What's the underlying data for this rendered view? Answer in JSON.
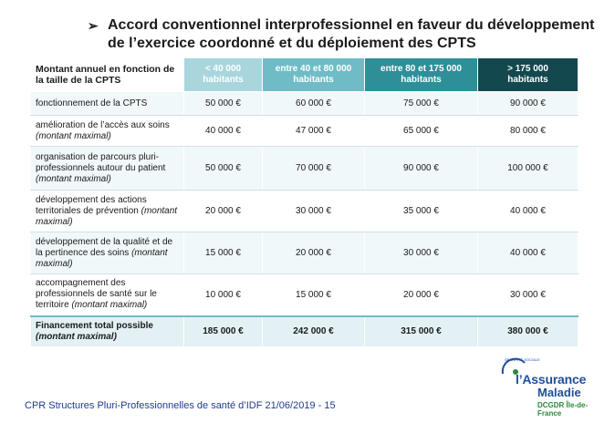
{
  "slide": {
    "title_bullet": "➢",
    "title": "Accord conventionnel interprofessionnel en faveur du développement de l’exercice coordonné et du déploiement des CPTS"
  },
  "table": {
    "corner_header": "Montant annuel en fonction de la taille de la CPTS",
    "columns": [
      {
        "line1": "< 40 000",
        "line2": "habitants",
        "color": "#a9d6dd"
      },
      {
        "line1": "entre 40 et 80 000",
        "line2": "habitants",
        "color": "#6fbcc6"
      },
      {
        "line1": "entre 80 et 175 000",
        "line2": "habitants",
        "color": "#2f8f99"
      },
      {
        "line1": "> 175 000",
        "line2": "habitants",
        "color": "#14484f"
      }
    ],
    "rows": [
      {
        "label": "fonctionnement de la CPTS",
        "note": "",
        "values": [
          "50 000 €",
          "60 000 €",
          "75 000 €",
          "90 000 €"
        ]
      },
      {
        "label": "amélioration de l’accès aux soins",
        "note": "(montant maximal)",
        "values": [
          "40 000 €",
          "47 000 €",
          "65 000 €",
          "80 000 €"
        ]
      },
      {
        "label": "organisation de parcours pluri-professionnels autour du patient",
        "note": "(montant maximal)",
        "values": [
          "50 000 €",
          "70 000 €",
          "90 000 €",
          "100 000 €"
        ]
      },
      {
        "label": "développement des actions territoriales de prévention",
        "note": "(montant maximal)",
        "values": [
          "20 000 €",
          "30 000 €",
          "35 000 €",
          "40 000 €"
        ]
      },
      {
        "label": "développement de la qualité et de la pertinence des soins",
        "note": "(montant maximal)",
        "values": [
          "15 000 €",
          "20 000 €",
          "30 000 €",
          "40 000 €"
        ]
      },
      {
        "label": "accompagnement des professionnels de santé sur le territoire",
        "note": "(montant maximal)",
        "values": [
          "10 000 €",
          "15 000 €",
          "20 000 €",
          "30 000 €"
        ]
      }
    ],
    "total": {
      "label": "Financement total possible",
      "note": "(montant maximal)",
      "values": [
        "185 000 €",
        "242 000 €",
        "315 000 €",
        "380 000 €"
      ]
    }
  },
  "footer": {
    "text": "CPR Structures Pluri-Professionnelles de santé d’IDF 21/06/2019 - 15"
  },
  "logo": {
    "tagline": "SÉCURITÉ SOCIALE",
    "brand_line1": "l’Assurance",
    "brand_line2": "Maladie",
    "region": "DCGDR Île-de-France"
  }
}
